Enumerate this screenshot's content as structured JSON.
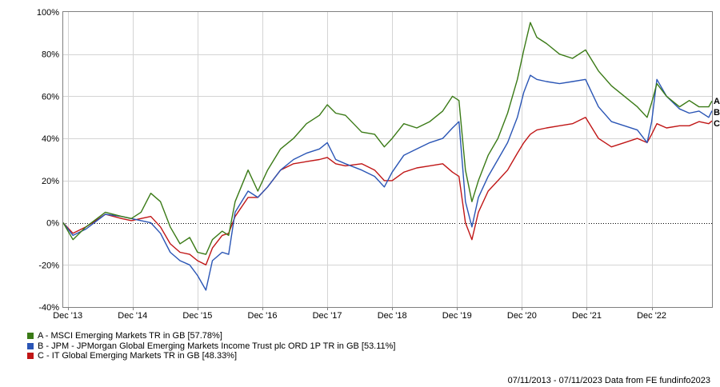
{
  "chart_data": {
    "type": "line",
    "title": "",
    "xlabel": "",
    "ylabel": "",
    "ylim": [
      -40,
      100
    ],
    "yticks": [
      -40,
      -20,
      0,
      20,
      40,
      60,
      80,
      100
    ],
    "ytick_labels": [
      "-40%",
      "-20%",
      "0%",
      "20%",
      "40%",
      "60%",
      "80%",
      "100%"
    ],
    "xlim": [
      2013.85,
      2023.85
    ],
    "xticks": [
      2013.92,
      2014.92,
      2015.92,
      2016.92,
      2017.92,
      2018.92,
      2019.92,
      2020.92,
      2021.92,
      2022.92
    ],
    "xtick_labels": [
      "Dec '13",
      "Dec '14",
      "Dec '15",
      "Dec '16",
      "Dec '17",
      "Dec '18",
      "Dec '19",
      "Dec '20",
      "Dec '21",
      "Dec '22"
    ],
    "grid": true,
    "zero_line": "dotted",
    "legend_position": "bottom-left",
    "series": [
      {
        "name": "A - MSCI Emerging Markets TR in GB [57.78%]",
        "end_label": "A",
        "color": "#3a7a16",
        "points": [
          [
            2013.85,
            0
          ],
          [
            2014.0,
            -8
          ],
          [
            2014.2,
            -2
          ],
          [
            2014.5,
            5
          ],
          [
            2014.75,
            3
          ],
          [
            2014.9,
            2
          ],
          [
            2015.05,
            5
          ],
          [
            2015.2,
            14
          ],
          [
            2015.35,
            10
          ],
          [
            2015.5,
            -2
          ],
          [
            2015.65,
            -10
          ],
          [
            2015.8,
            -7
          ],
          [
            2015.92,
            -14
          ],
          [
            2016.05,
            -15
          ],
          [
            2016.15,
            -8
          ],
          [
            2016.3,
            -4
          ],
          [
            2016.4,
            -6
          ],
          [
            2016.5,
            10
          ],
          [
            2016.7,
            25
          ],
          [
            2016.85,
            15
          ],
          [
            2017.0,
            25
          ],
          [
            2017.2,
            35
          ],
          [
            2017.4,
            40
          ],
          [
            2017.6,
            47
          ],
          [
            2017.8,
            51
          ],
          [
            2017.92,
            56
          ],
          [
            2018.05,
            52
          ],
          [
            2018.2,
            51
          ],
          [
            2018.45,
            43
          ],
          [
            2018.65,
            42
          ],
          [
            2018.8,
            36
          ],
          [
            2018.92,
            40
          ],
          [
            2019.1,
            47
          ],
          [
            2019.3,
            45
          ],
          [
            2019.5,
            48
          ],
          [
            2019.7,
            53
          ],
          [
            2019.85,
            60
          ],
          [
            2019.95,
            58
          ],
          [
            2020.05,
            25
          ],
          [
            2020.15,
            10
          ],
          [
            2020.25,
            20
          ],
          [
            2020.4,
            32
          ],
          [
            2020.55,
            40
          ],
          [
            2020.7,
            52
          ],
          [
            2020.85,
            68
          ],
          [
            2020.95,
            82
          ],
          [
            2021.05,
            95
          ],
          [
            2021.15,
            88
          ],
          [
            2021.3,
            85
          ],
          [
            2021.5,
            80
          ],
          [
            2021.7,
            78
          ],
          [
            2021.9,
            82
          ],
          [
            2022.1,
            72
          ],
          [
            2022.3,
            65
          ],
          [
            2022.5,
            60
          ],
          [
            2022.7,
            55
          ],
          [
            2022.85,
            50
          ],
          [
            2022.92,
            57
          ],
          [
            2023.0,
            66
          ],
          [
            2023.15,
            60
          ],
          [
            2023.35,
            55
          ],
          [
            2023.5,
            58
          ],
          [
            2023.65,
            55
          ],
          [
            2023.8,
            55
          ],
          [
            2023.85,
            57.78
          ]
        ]
      },
      {
        "name": "B - JPM - JPMorgan Global Emerging Markets Income Trust plc ORD 1P TR in GB [53.11%]",
        "end_label": "B",
        "color": "#2a55b5",
        "points": [
          [
            2013.85,
            0
          ],
          [
            2014.0,
            -6
          ],
          [
            2014.2,
            -3
          ],
          [
            2014.5,
            4
          ],
          [
            2014.75,
            3
          ],
          [
            2014.9,
            2
          ],
          [
            2015.05,
            1
          ],
          [
            2015.2,
            0
          ],
          [
            2015.35,
            -5
          ],
          [
            2015.5,
            -14
          ],
          [
            2015.65,
            -18
          ],
          [
            2015.8,
            -20
          ],
          [
            2015.92,
            -25
          ],
          [
            2016.05,
            -32
          ],
          [
            2016.15,
            -18
          ],
          [
            2016.3,
            -14
          ],
          [
            2016.4,
            -15
          ],
          [
            2016.5,
            5
          ],
          [
            2016.7,
            15
          ],
          [
            2016.85,
            12
          ],
          [
            2017.0,
            17
          ],
          [
            2017.2,
            25
          ],
          [
            2017.4,
            30
          ],
          [
            2017.6,
            33
          ],
          [
            2017.8,
            35
          ],
          [
            2017.92,
            38
          ],
          [
            2018.05,
            30
          ],
          [
            2018.2,
            28
          ],
          [
            2018.45,
            25
          ],
          [
            2018.65,
            22
          ],
          [
            2018.8,
            17
          ],
          [
            2018.92,
            24
          ],
          [
            2019.1,
            32
          ],
          [
            2019.3,
            35
          ],
          [
            2019.5,
            38
          ],
          [
            2019.7,
            40
          ],
          [
            2019.85,
            45
          ],
          [
            2019.95,
            48
          ],
          [
            2020.05,
            10
          ],
          [
            2020.15,
            -2
          ],
          [
            2020.25,
            12
          ],
          [
            2020.4,
            22
          ],
          [
            2020.55,
            30
          ],
          [
            2020.7,
            38
          ],
          [
            2020.85,
            50
          ],
          [
            2020.95,
            62
          ],
          [
            2021.05,
            70
          ],
          [
            2021.15,
            68
          ],
          [
            2021.3,
            67
          ],
          [
            2021.5,
            66
          ],
          [
            2021.7,
            67
          ],
          [
            2021.9,
            68
          ],
          [
            2022.1,
            55
          ],
          [
            2022.3,
            48
          ],
          [
            2022.5,
            46
          ],
          [
            2022.7,
            44
          ],
          [
            2022.85,
            38
          ],
          [
            2022.92,
            48
          ],
          [
            2023.0,
            68
          ],
          [
            2023.15,
            60
          ],
          [
            2023.35,
            54
          ],
          [
            2023.5,
            52
          ],
          [
            2023.65,
            53
          ],
          [
            2023.8,
            50
          ],
          [
            2023.85,
            53.11
          ]
        ]
      },
      {
        "name": "C - IT Global Emerging Markets TR in GB [48.33%]",
        "end_label": "C",
        "color": "#c01616",
        "points": [
          [
            2013.85,
            0
          ],
          [
            2014.0,
            -5
          ],
          [
            2014.2,
            -2
          ],
          [
            2014.5,
            4
          ],
          [
            2014.75,
            2
          ],
          [
            2014.9,
            1
          ],
          [
            2015.05,
            2
          ],
          [
            2015.2,
            3
          ],
          [
            2015.35,
            -2
          ],
          [
            2015.5,
            -10
          ],
          [
            2015.65,
            -14
          ],
          [
            2015.8,
            -15
          ],
          [
            2015.92,
            -18
          ],
          [
            2016.05,
            -20
          ],
          [
            2016.15,
            -12
          ],
          [
            2016.3,
            -6
          ],
          [
            2016.4,
            -5
          ],
          [
            2016.5,
            3
          ],
          [
            2016.7,
            12
          ],
          [
            2016.85,
            12
          ],
          [
            2017.0,
            17
          ],
          [
            2017.2,
            25
          ],
          [
            2017.4,
            28
          ],
          [
            2017.6,
            29
          ],
          [
            2017.8,
            30
          ],
          [
            2017.92,
            31
          ],
          [
            2018.05,
            28
          ],
          [
            2018.2,
            27
          ],
          [
            2018.45,
            28
          ],
          [
            2018.65,
            25
          ],
          [
            2018.8,
            20
          ],
          [
            2018.92,
            20
          ],
          [
            2019.1,
            24
          ],
          [
            2019.3,
            26
          ],
          [
            2019.5,
            27
          ],
          [
            2019.7,
            28
          ],
          [
            2019.85,
            24
          ],
          [
            2019.95,
            22
          ],
          [
            2020.05,
            0
          ],
          [
            2020.15,
            -8
          ],
          [
            2020.25,
            5
          ],
          [
            2020.4,
            15
          ],
          [
            2020.55,
            20
          ],
          [
            2020.7,
            25
          ],
          [
            2020.85,
            33
          ],
          [
            2020.95,
            38
          ],
          [
            2021.05,
            42
          ],
          [
            2021.15,
            44
          ],
          [
            2021.3,
            45
          ],
          [
            2021.5,
            46
          ],
          [
            2021.7,
            47
          ],
          [
            2021.9,
            50
          ],
          [
            2022.1,
            40
          ],
          [
            2022.3,
            36
          ],
          [
            2022.5,
            38
          ],
          [
            2022.7,
            40
          ],
          [
            2022.85,
            38
          ],
          [
            2022.92,
            42
          ],
          [
            2023.0,
            47
          ],
          [
            2023.15,
            45
          ],
          [
            2023.35,
            46
          ],
          [
            2023.5,
            46
          ],
          [
            2023.65,
            48
          ],
          [
            2023.8,
            47
          ],
          [
            2023.85,
            48.33
          ]
        ]
      }
    ]
  },
  "footer": {
    "date_range_and_source": "07/11/2013 - 07/11/2023 Data from FE fundinfo2023"
  }
}
